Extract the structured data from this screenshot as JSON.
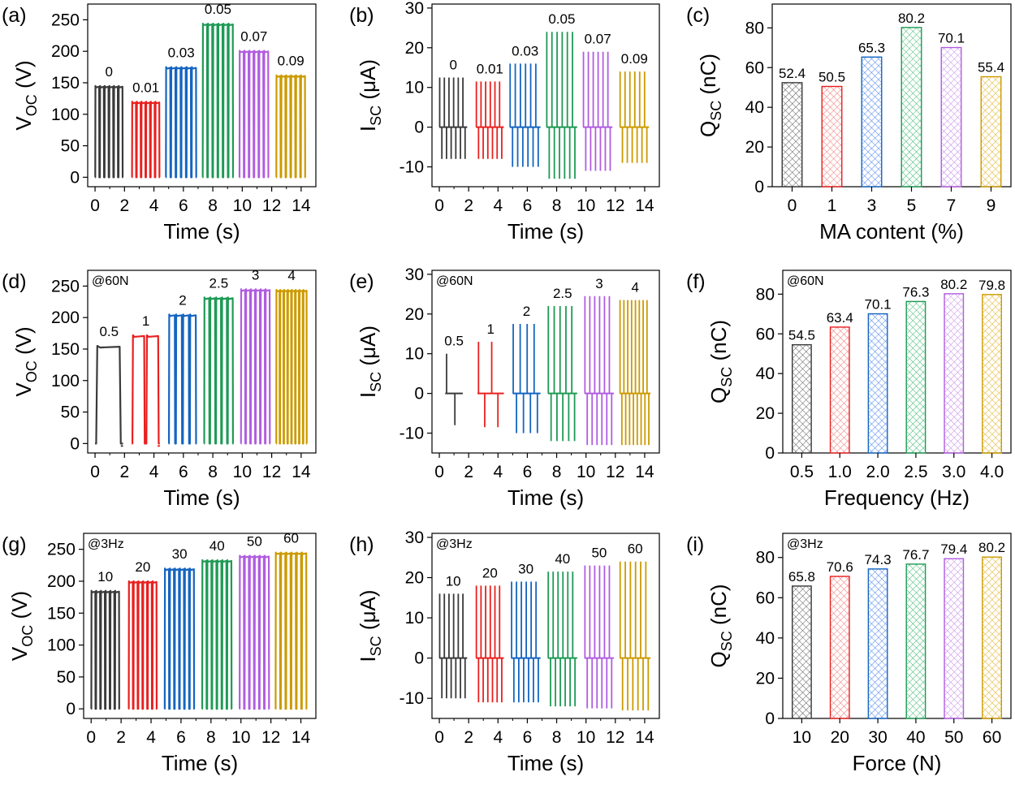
{
  "colors": {
    "series": [
      "#3a3a3a",
      "#e8201f",
      "#1565c0",
      "#1e9a55",
      "#b15de0",
      "#cc9a00"
    ],
    "hatch": [
      "#555555",
      "#f07070",
      "#4a80f0",
      "#3cb870",
      "#c48ae8",
      "#e0b020"
    ]
  },
  "chart_data": [
    {
      "id": "a",
      "type": "line",
      "panel_label": "(a)",
      "annotation": "",
      "xlabel": "Time (s)",
      "ylabel_main": "V",
      "ylabel_sub": "OC",
      "ylabel_unit": " (V)",
      "xlim": [
        -0.5,
        15
      ],
      "ylim": [
        -15,
        275
      ],
      "xticks": [
        "0",
        "2",
        "4",
        "6",
        "8",
        "10",
        "12",
        "14"
      ],
      "yticks": [
        "0",
        "50",
        "100",
        "150",
        "200",
        "250"
      ],
      "series": [
        {
          "name": "0",
          "label": "0",
          "t_range": [
            0,
            1.9
          ],
          "cycles": 6,
          "peak": 145,
          "low": 0
        },
        {
          "name": "0.01",
          "label": "0.01",
          "t_range": [
            2.5,
            4.4
          ],
          "cycles": 6,
          "peak": 120,
          "low": 0
        },
        {
          "name": "0.03",
          "label": "0.03",
          "t_range": [
            4.8,
            6.9
          ],
          "cycles": 6,
          "peak": 175,
          "low": 0
        },
        {
          "name": "0.05",
          "label": "0.05",
          "t_range": [
            7.3,
            9.4
          ],
          "cycles": 6,
          "peak": 244,
          "low": 0
        },
        {
          "name": "0.07",
          "label": "0.07",
          "t_range": [
            9.8,
            11.8
          ],
          "cycles": 6,
          "peak": 201,
          "low": 0
        },
        {
          "name": "0.09",
          "label": "0.09",
          "t_range": [
            12.3,
            14.3
          ],
          "cycles": 6,
          "peak": 162,
          "low": 0
        }
      ]
    },
    {
      "id": "b",
      "type": "spikes",
      "panel_label": "(b)",
      "annotation": "",
      "xlabel": "Time (s)",
      "ylabel_main": "I",
      "ylabel_sub": "SC",
      "ylabel_unit": " (μA)",
      "xlim": [
        -0.5,
        15
      ],
      "ylim": [
        -15,
        31
      ],
      "xticks": [
        "0",
        "2",
        "4",
        "6",
        "8",
        "10",
        "12",
        "14"
      ],
      "yticks": [
        "-10",
        "0",
        "10",
        "20",
        "30"
      ],
      "series": [
        {
          "name": "0",
          "label": "0",
          "t_range": [
            0,
            1.9
          ],
          "cycles": 6,
          "pos": 12.5,
          "neg": -8
        },
        {
          "name": "0.01",
          "label": "0.01",
          "t_range": [
            2.5,
            4.4
          ],
          "cycles": 6,
          "pos": 11.5,
          "neg": -8
        },
        {
          "name": "0.03",
          "label": "0.03",
          "t_range": [
            4.8,
            6.9
          ],
          "cycles": 6,
          "pos": 16,
          "neg": -10
        },
        {
          "name": "0.05",
          "label": "0.05",
          "t_range": [
            7.3,
            9.4
          ],
          "cycles": 6,
          "pos": 24,
          "neg": -13
        },
        {
          "name": "0.07",
          "label": "0.07",
          "t_range": [
            9.8,
            11.8
          ],
          "cycles": 6,
          "pos": 19,
          "neg": -11
        },
        {
          "name": "0.09",
          "label": "0.09",
          "t_range": [
            12.3,
            14.3
          ],
          "cycles": 6,
          "pos": 14,
          "neg": -9
        }
      ]
    },
    {
      "id": "c",
      "type": "bar",
      "panel_label": "(c)",
      "annotation": "",
      "xlabel": "MA content (%)",
      "ylabel_main": "Q",
      "ylabel_sub": "SC",
      "ylabel_unit": " (nC)",
      "ylim": [
        0,
        92
      ],
      "categories": [
        "0",
        "1",
        "3",
        "5",
        "7",
        "9"
      ],
      "values": [
        52.4,
        50.5,
        65.3,
        80.2,
        70.1,
        55.4
      ],
      "value_labels": [
        "52.4",
        "50.5",
        "65.3",
        "80.2",
        "70.1",
        "55.4"
      ],
      "yticks": [
        "0",
        "20",
        "40",
        "60",
        "80"
      ]
    },
    {
      "id": "d",
      "type": "line",
      "panel_label": "(d)",
      "annotation": "@60N",
      "xlabel": "Time (s)",
      "ylabel_main": "V",
      "ylabel_sub": "OC",
      "ylabel_unit": " (V)",
      "xlim": [
        -0.5,
        15
      ],
      "ylim": [
        -15,
        275
      ],
      "xticks": [
        "0",
        "2",
        "4",
        "6",
        "8",
        "10",
        "12",
        "14"
      ],
      "yticks": [
        "0",
        "50",
        "100",
        "150",
        "200",
        "250"
      ],
      "series": [
        {
          "name": "0.5 Hz",
          "label": "0.5",
          "t_range": [
            0,
            1.9
          ],
          "cycles": 1,
          "peak": 155,
          "low": 0
        },
        {
          "name": "1 Hz",
          "label": "1",
          "t_range": [
            2.5,
            4.4
          ],
          "cycles": 2,
          "peak": 172,
          "low": 0
        },
        {
          "name": "2 Hz",
          "label": "2",
          "t_range": [
            5.0,
            6.9
          ],
          "cycles": 4,
          "peak": 205,
          "low": 0
        },
        {
          "name": "2.5 Hz",
          "label": "2.5",
          "t_range": [
            7.4,
            9.4
          ],
          "cycles": 5,
          "peak": 232,
          "low": 0
        },
        {
          "name": "3 Hz",
          "label": "3",
          "t_range": [
            9.9,
            11.9
          ],
          "cycles": 6,
          "peak": 245,
          "low": 0
        },
        {
          "name": "4 Hz",
          "label": "4",
          "t_range": [
            12.3,
            14.4
          ],
          "cycles": 8,
          "peak": 244,
          "low": 0
        }
      ]
    },
    {
      "id": "e",
      "type": "spikes",
      "panel_label": "(e)",
      "annotation": "@60N",
      "xlabel": "Time (s)",
      "ylabel_main": "I",
      "ylabel_sub": "SC",
      "ylabel_unit": " (μA)",
      "xlim": [
        -0.5,
        15
      ],
      "ylim": [
        -15,
        31
      ],
      "xticks": [
        "0",
        "2",
        "4",
        "6",
        "8",
        "10",
        "12",
        "14"
      ],
      "yticks": [
        "-10",
        "0",
        "10",
        "20",
        "30"
      ],
      "series": [
        {
          "name": "0.5 Hz",
          "label": "0.5",
          "t_range": [
            0.4,
            1.6
          ],
          "cycles": 1,
          "pos": 10,
          "neg": -8
        },
        {
          "name": "1 Hz",
          "label": "1",
          "t_range": [
            2.6,
            4.4
          ],
          "cycles": 2,
          "pos": 13,
          "neg": -8.5
        },
        {
          "name": "2 Hz",
          "label": "2",
          "t_range": [
            5.0,
            6.9
          ],
          "cycles": 4,
          "pos": 17.5,
          "neg": -10
        },
        {
          "name": "2.5 Hz",
          "label": "2.5",
          "t_range": [
            7.4,
            9.4
          ],
          "cycles": 5,
          "pos": 22,
          "neg": -12
        },
        {
          "name": "3 Hz",
          "label": "3",
          "t_range": [
            9.9,
            11.9
          ],
          "cycles": 6,
          "pos": 24.5,
          "neg": -13
        },
        {
          "name": "4 Hz",
          "label": "4",
          "t_range": [
            12.3,
            14.4
          ],
          "cycles": 8,
          "pos": 23.5,
          "neg": -13
        }
      ]
    },
    {
      "id": "f",
      "type": "bar",
      "panel_label": "(f)",
      "annotation": "@60N",
      "xlabel": "Frequency (Hz)",
      "ylabel_main": "Q",
      "ylabel_sub": "SC",
      "ylabel_unit": " (nC)",
      "ylim": [
        0,
        92
      ],
      "categories": [
        "0.5",
        "1.0",
        "2.0",
        "2.5",
        "3.0",
        "4.0"
      ],
      "values": [
        54.5,
        63.4,
        70.1,
        76.3,
        80.2,
        79.8
      ],
      "value_labels": [
        "54.5",
        "63.4",
        "70.1",
        "76.3",
        "80.2",
        "79.8"
      ],
      "yticks": [
        "0",
        "20",
        "40",
        "60",
        "80"
      ]
    },
    {
      "id": "g",
      "type": "line",
      "panel_label": "(g)",
      "annotation": "@3Hz",
      "xlabel": "Time (s)",
      "ylabel_main": "V",
      "ylabel_sub": "OC",
      "ylabel_unit": " (V)",
      "xlim": [
        -0.5,
        15
      ],
      "ylim": [
        -15,
        275
      ],
      "xticks": [
        "0",
        "2",
        "4",
        "6",
        "8",
        "10",
        "12",
        "14"
      ],
      "yticks": [
        "0",
        "50",
        "100",
        "150",
        "200",
        "250"
      ],
      "series": [
        {
          "name": "10 N",
          "label": "10",
          "t_range": [
            0,
            1.9
          ],
          "cycles": 6,
          "peak": 185,
          "low": 0
        },
        {
          "name": "20 N",
          "label": "20",
          "t_range": [
            2.5,
            4.4
          ],
          "cycles": 6,
          "peak": 200,
          "low": 0
        },
        {
          "name": "30 N",
          "label": "30",
          "t_range": [
            4.9,
            6.9
          ],
          "cycles": 6,
          "peak": 220,
          "low": 0
        },
        {
          "name": "40 N",
          "label": "40",
          "t_range": [
            7.4,
            9.4
          ],
          "cycles": 6,
          "peak": 233,
          "low": 0
        },
        {
          "name": "50 N",
          "label": "50",
          "t_range": [
            9.9,
            11.9
          ],
          "cycles": 6,
          "peak": 240,
          "low": 0
        },
        {
          "name": "60 N",
          "label": "60",
          "t_range": [
            12.3,
            14.4
          ],
          "cycles": 6,
          "peak": 245,
          "low": 0
        }
      ]
    },
    {
      "id": "h",
      "type": "spikes",
      "panel_label": "(h)",
      "annotation": "@3Hz",
      "xlabel": "Time (s)",
      "ylabel_main": "I",
      "ylabel_sub": "SC",
      "ylabel_unit": " (μA)",
      "xlim": [
        -0.5,
        15
      ],
      "ylim": [
        -15,
        31
      ],
      "xticks": [
        "0",
        "2",
        "4",
        "6",
        "8",
        "10",
        "12",
        "14"
      ],
      "yticks": [
        "-10",
        "0",
        "10",
        "20",
        "30"
      ],
      "series": [
        {
          "name": "10 N",
          "label": "10",
          "t_range": [
            0,
            1.9
          ],
          "cycles": 6,
          "pos": 16,
          "neg": -10
        },
        {
          "name": "20 N",
          "label": "20",
          "t_range": [
            2.5,
            4.4
          ],
          "cycles": 6,
          "pos": 18,
          "neg": -11
        },
        {
          "name": "30 N",
          "label": "30",
          "t_range": [
            4.9,
            6.9
          ],
          "cycles": 6,
          "pos": 19,
          "neg": -11
        },
        {
          "name": "40 N",
          "label": "40",
          "t_range": [
            7.4,
            9.4
          ],
          "cycles": 6,
          "pos": 21.5,
          "neg": -12
        },
        {
          "name": "50 N",
          "label": "50",
          "t_range": [
            9.9,
            11.9
          ],
          "cycles": 6,
          "pos": 23,
          "neg": -12.5
        },
        {
          "name": "60 N",
          "label": "60",
          "t_range": [
            12.3,
            14.4
          ],
          "cycles": 6,
          "pos": 24,
          "neg": -13
        }
      ]
    },
    {
      "id": "i",
      "type": "bar",
      "panel_label": "(i)",
      "annotation": "@3Hz",
      "xlabel": "Force (N)",
      "ylabel_main": "Q",
      "ylabel_sub": "SC",
      "ylabel_unit": " (nC)",
      "ylim": [
        0,
        92
      ],
      "categories": [
        "10",
        "20",
        "30",
        "40",
        "50",
        "60"
      ],
      "values": [
        65.8,
        70.6,
        74.3,
        76.7,
        79.4,
        80.2
      ],
      "value_labels": [
        "65.8",
        "70.6",
        "74.3",
        "76.7",
        "79.4",
        "80.2"
      ],
      "yticks": [
        "0",
        "20",
        "40",
        "60",
        "80"
      ]
    }
  ]
}
